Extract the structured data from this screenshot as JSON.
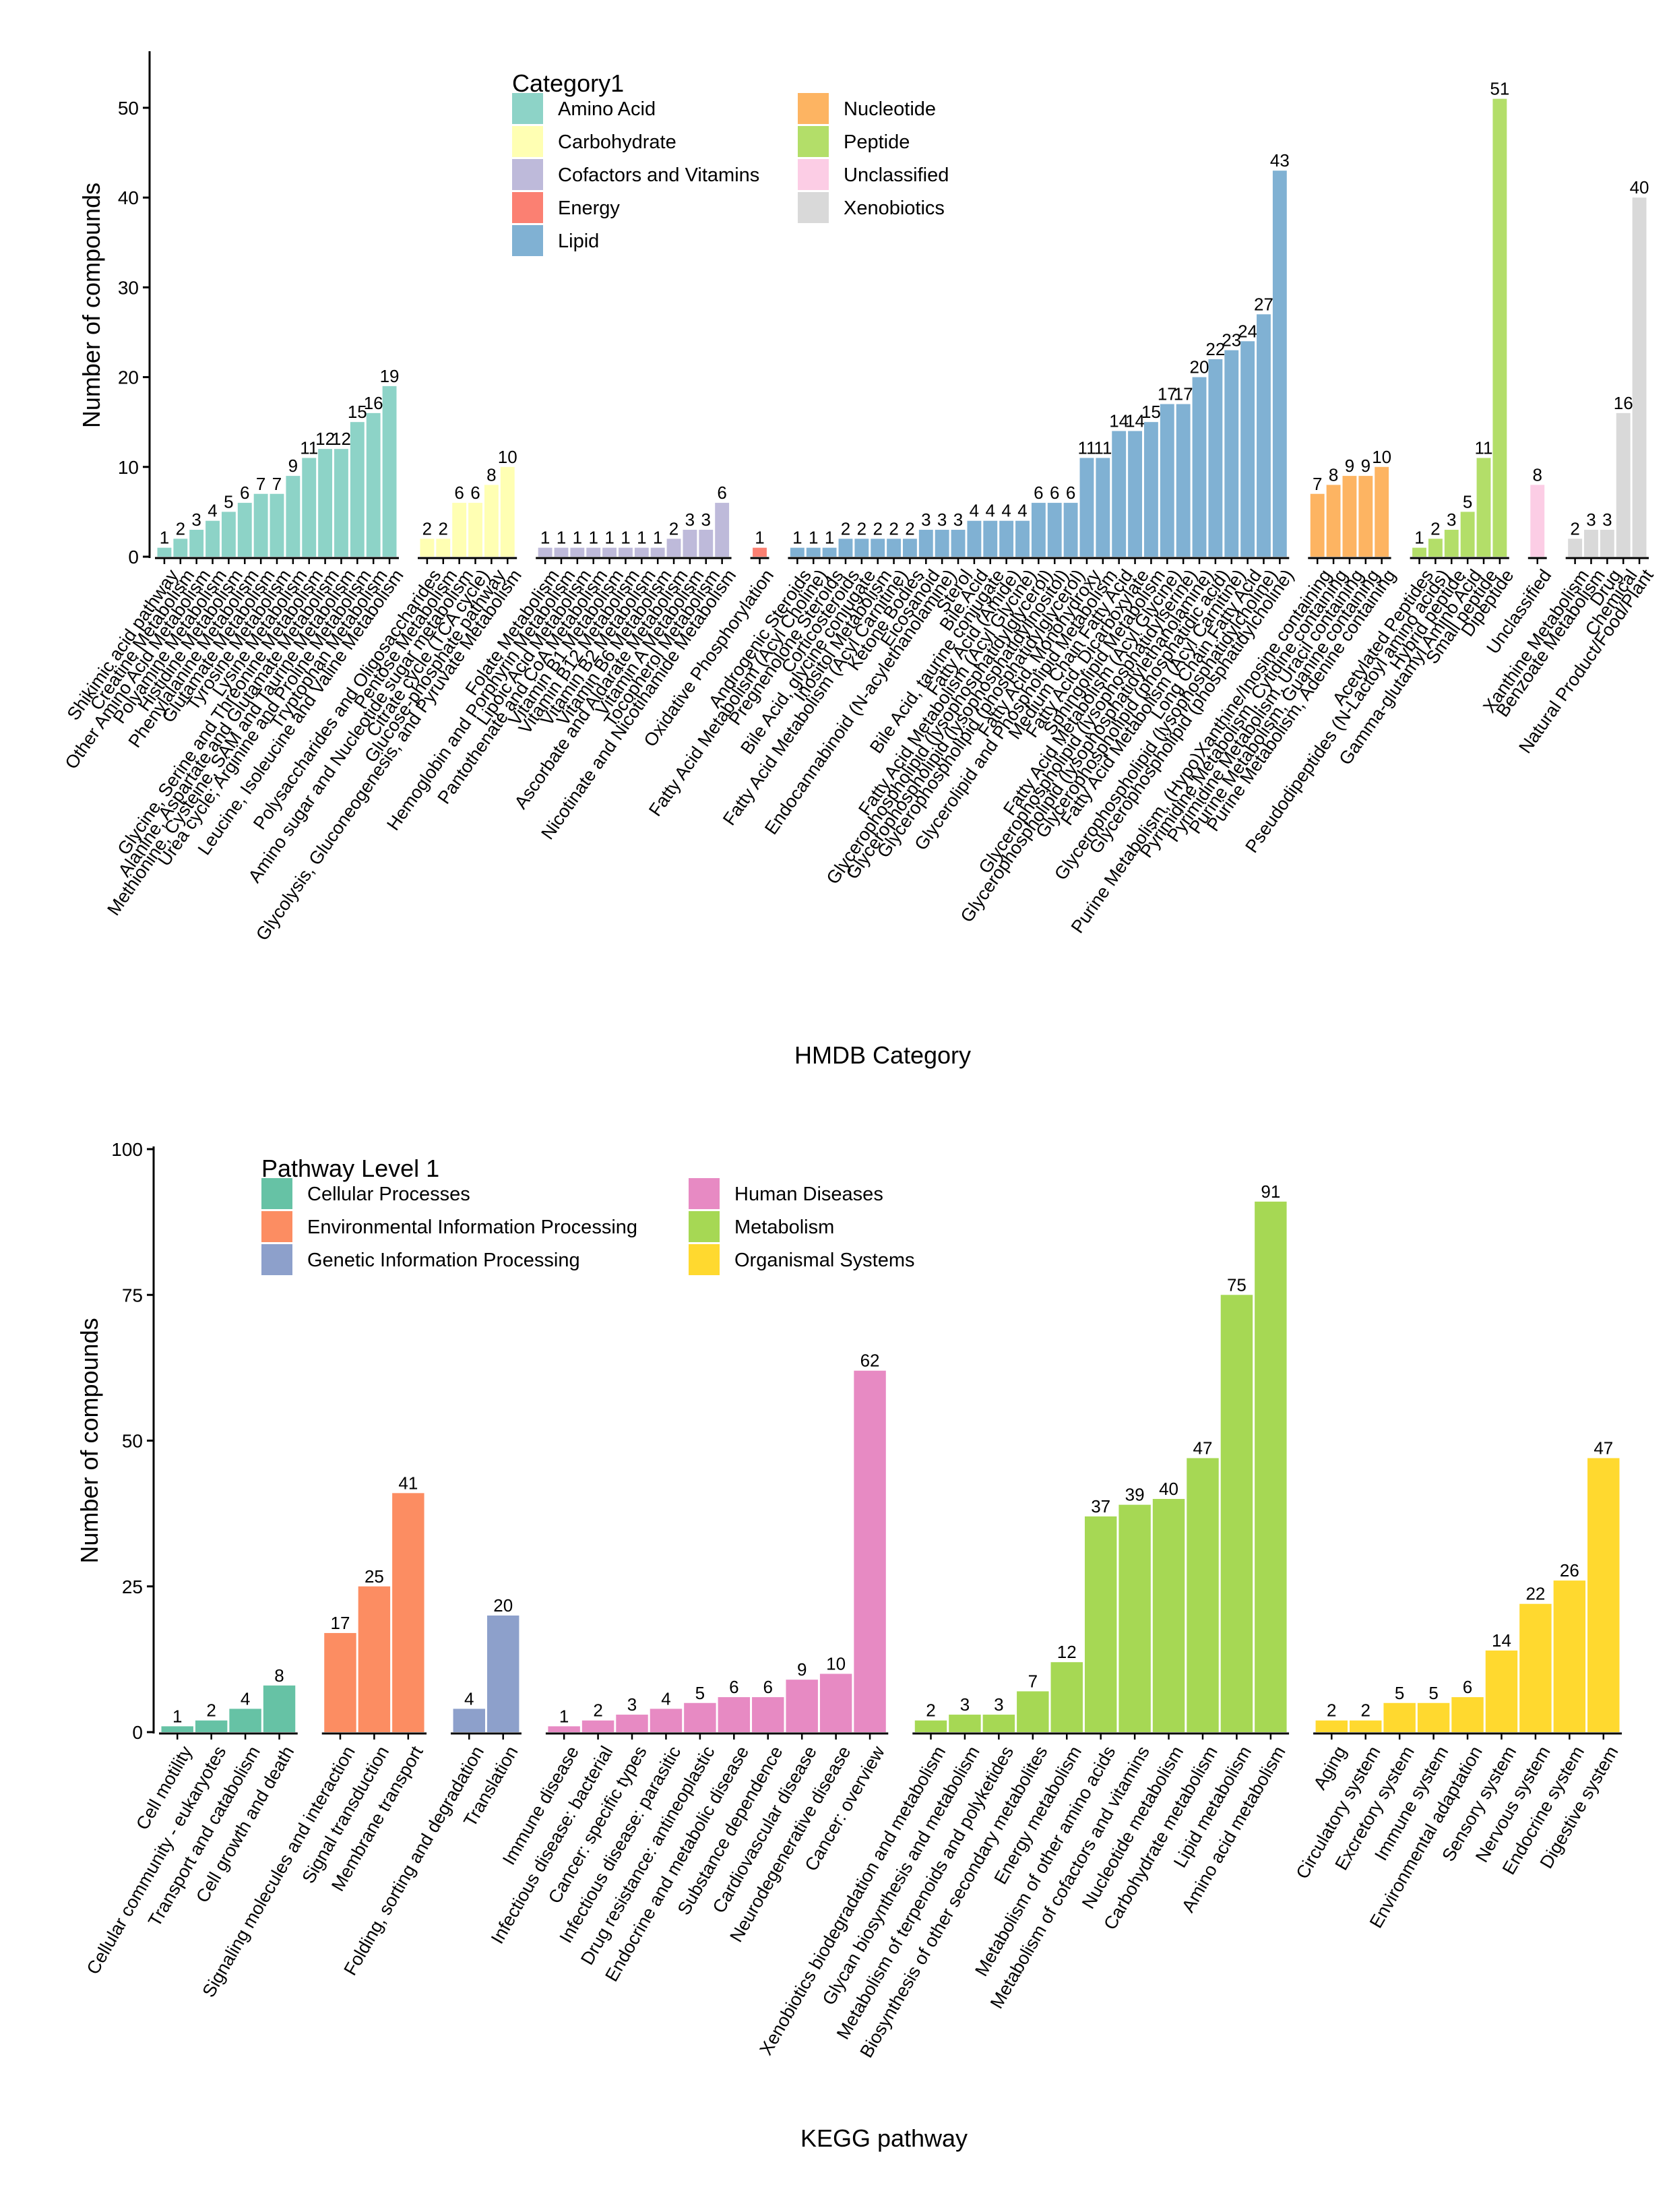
{
  "chart_data": [
    {
      "type": "bar",
      "xlabel": "HMDB Category",
      "ylabel": "Number of compounds",
      "ylim": [
        0,
        56
      ],
      "yticks": [
        0,
        10,
        20,
        30,
        40,
        50
      ],
      "grid": false,
      "legend": {
        "title": "Category1",
        "placement": "top-left",
        "entries": [
          {
            "name": "Amino Acid",
            "color": "#8dd3c7"
          },
          {
            "name": "Carbohydrate",
            "color": "#ffffb3"
          },
          {
            "name": "Cofactors and Vitamins",
            "color": "#bebada"
          },
          {
            "name": "Energy",
            "color": "#fb8072"
          },
          {
            "name": "Lipid",
            "color": "#80b1d3"
          },
          {
            "name": "Nucleotide",
            "color": "#fdb462"
          },
          {
            "name": "Peptide",
            "color": "#b3de69"
          },
          {
            "name": "Unclassified",
            "color": "#fccde5"
          },
          {
            "name": "Xenobiotics",
            "color": "#d9d9d9"
          }
        ]
      },
      "groups": [
        {
          "name": "Amino Acid",
          "color": "#8dd3c7",
          "bars": [
            {
              "label": "Shikimic acid pathway",
              "value": 1
            },
            {
              "label": "Creatine Metabolism",
              "value": 2
            },
            {
              "label": "Other Amino Acid Metabolism",
              "value": 3
            },
            {
              "label": "Polyamine Metabolism",
              "value": 4
            },
            {
              "label": "Histidine Metabolism",
              "value": 5
            },
            {
              "label": "Phenylalanine Metabolism",
              "value": 6
            },
            {
              "label": "Glutamate Metabolism",
              "value": 7
            },
            {
              "label": "Tyrosine Metabolism",
              "value": 7
            },
            {
              "label": "Lysine Metabolism",
              "value": 9
            },
            {
              "label": "Glycine, Serine and Threonine Metabolism",
              "value": 11
            },
            {
              "label": "Alanine, Aspartate and Glutamate Metabolism",
              "value": 12
            },
            {
              "label": "Methionine, Cysteine, SAM and Taurine Metabolism",
              "value": 12
            },
            {
              "label": "Urea cycle; Arginine and Proline Metabolism",
              "value": 15
            },
            {
              "label": "Tryptophan Metabolism",
              "value": 16
            },
            {
              "label": "Leucine, Isoleucine and Valine Metabolism",
              "value": 19
            }
          ]
        },
        {
          "name": "Carbohydrate",
          "color": "#ffffb3",
          "bars": [
            {
              "label": "Polysaccharides and Oligosaccharides",
              "value": 2
            },
            {
              "label": "Pentose Metabolism",
              "value": 2
            },
            {
              "label": "Amino sugar and Nucleotide sugar metabolism",
              "value": 6
            },
            {
              "label": "Citrate cycle (TCA cycle)",
              "value": 6
            },
            {
              "label": "Glucose-phosphate pathway",
              "value": 8
            },
            {
              "label": "Glycolysis, Gluconeogenesis, and Pyruvate Metabolism",
              "value": 10
            }
          ]
        },
        {
          "name": "Cofactors and Vitamins",
          "color": "#bebada",
          "bars": [
            {
              "label": "Folate Metabolism",
              "value": 1
            },
            {
              "label": "Hemoglobin and Porphyrin Metabolism",
              "value": 1
            },
            {
              "label": "Lipoic Acid Metabolism",
              "value": 1
            },
            {
              "label": "Pantothenate and CoA Metabolism",
              "value": 1
            },
            {
              "label": "Vitamin B1 Metabolism",
              "value": 1
            },
            {
              "label": "Vitamin B12 Metabolism",
              "value": 1
            },
            {
              "label": "Vitamin B2 Metabolism",
              "value": 1
            },
            {
              "label": "Vitamin B6 Metabolism",
              "value": 1
            },
            {
              "label": "Ascorbate and Aldarate Metabolism",
              "value": 2
            },
            {
              "label": "Vitamin A Metabolism",
              "value": 3
            },
            {
              "label": "Tocopherol Metabolism",
              "value": 3
            },
            {
              "label": "Nicotinate and Nicotinamide Metabolism",
              "value": 6
            }
          ]
        },
        {
          "name": "Energy",
          "color": "#fb8072",
          "bars": [
            {
              "label": "Oxidative Phosphorylation",
              "value": 1
            }
          ]
        },
        {
          "name": "Lipid",
          "color": "#80b1d3",
          "bars": [
            {
              "label": "Androgenic Steroids",
              "value": 1
            },
            {
              "label": "Fatty Acid Metabolism (Acyl Choline)",
              "value": 1
            },
            {
              "label": "Pregnenolone Steroids",
              "value": 1
            },
            {
              "label": "Corticosteroids",
              "value": 2
            },
            {
              "label": "Bile Acid, glycine conjugate",
              "value": 2
            },
            {
              "label": "Inositol Metabolism",
              "value": 2
            },
            {
              "label": "Fatty Acid Metabolism (Acyl Carnitine)",
              "value": 2
            },
            {
              "label": "Ketone Bodies",
              "value": 2
            },
            {
              "label": "Eicosanoid",
              "value": 3
            },
            {
              "label": "Endocannabinoid (N-acylethanolamine)",
              "value": 3
            },
            {
              "label": "Sterol",
              "value": 3
            },
            {
              "label": "Bile Acid",
              "value": 4
            },
            {
              "label": "Bile Acid, taurine conjugate",
              "value": 4
            },
            {
              "label": "Fatty Acid (Amide)",
              "value": 4
            },
            {
              "label": "Fatty Acid Metabolism (Acyl Glycine)",
              "value": 4
            },
            {
              "label": "Glycerophospholipid (lysophosphatidylglycerol)",
              "value": 6
            },
            {
              "label": "Glycerophospholipid (lysophosphatidylinositol)",
              "value": 6
            },
            {
              "label": "Glycerophospholipid (phosphatidylglycerol)",
              "value": 6
            },
            {
              "label": "Fatty Acid, Monohydroxy",
              "value": 11
            },
            {
              "label": "Glycerolipid and Phospholipid Metabolism",
              "value": 11
            },
            {
              "label": "Medium Chain Fatty Acid",
              "value": 14
            },
            {
              "label": "Fatty Acid, Dicarboxylate",
              "value": 14
            },
            {
              "label": "Sphingolipid Metabolism",
              "value": 15
            },
            {
              "label": "Fatty Acid Metabolism (Acyl Glycine)",
              "value": 17
            },
            {
              "label": "Glycerophospholipid (lysophosphatidylserine)",
              "value": 17
            },
            {
              "label": "Glycerophospholipid (lysophosphatidylethanolamine)",
              "value": 20
            },
            {
              "label": "Glycerophospholipid (phosphatidic acid)",
              "value": 22
            },
            {
              "label": "Fatty Acid Metabolism (Acyl Carnitine)",
              "value": 23
            },
            {
              "label": "Long Chain Fatty Acid",
              "value": 24
            },
            {
              "label": "Glycerophospholipid (lysophosphatidylcholine)",
              "value": 27
            },
            {
              "label": "Glycerophospholipid (phosphatidylcholine)",
              "value": 43
            }
          ]
        },
        {
          "name": "Nucleotide",
          "color": "#fdb462",
          "bars": [
            {
              "label": "Purine Metabolism, (Hypo)Xanthine/Inosine containing",
              "value": 7
            },
            {
              "label": "Pyrimidine Metabolism, Cytidine containing",
              "value": 8
            },
            {
              "label": "Pyrimidine Metabolism, Uracil containing",
              "value": 9
            },
            {
              "label": "Purine Metabolism, Guanine containing",
              "value": 9
            },
            {
              "label": "Purine Metabolism, Adenine containing",
              "value": 10
            }
          ]
        },
        {
          "name": "Peptide",
          "color": "#b3de69",
          "bars": [
            {
              "label": "Acetylated Peptides",
              "value": 1
            },
            {
              "label": "Pseudodipeptides (N-Lactoyl amino acids)",
              "value": 2
            },
            {
              "label": "Hybrid peptide",
              "value": 3
            },
            {
              "label": "Gamma-glutamyl Amino Acid",
              "value": 5
            },
            {
              "label": "Small peptide",
              "value": 11
            },
            {
              "label": "Dipeptide",
              "value": 51
            }
          ]
        },
        {
          "name": "Unclassified",
          "color": "#fccde5",
          "bars": [
            {
              "label": "Unclassified",
              "value": 8
            }
          ]
        },
        {
          "name": "Xenobiotics",
          "color": "#d9d9d9",
          "bars": [
            {
              "label": "Xanthine Metabolism",
              "value": 2
            },
            {
              "label": "Benzoate Metabolism",
              "value": 3
            },
            {
              "label": "Drug",
              "value": 3
            },
            {
              "label": "Chemical",
              "value": 16
            },
            {
              "label": "Natural Product/Food/Plant",
              "value": 40
            }
          ]
        }
      ]
    },
    {
      "type": "bar",
      "xlabel": "KEGG pathway",
      "ylabel": "Number of compounds",
      "ylim": [
        0,
        100
      ],
      "yticks": [
        0,
        25,
        50,
        75,
        100
      ],
      "grid": false,
      "legend": {
        "title": "Pathway Level 1",
        "placement": "top-left",
        "entries": [
          {
            "name": "Cellular Processes",
            "color": "#66c2a5"
          },
          {
            "name": "Environmental Information Processing",
            "color": "#fc8d62"
          },
          {
            "name": "Genetic Information Processing",
            "color": "#8da0cb"
          },
          {
            "name": "Human Diseases",
            "color": "#e78ac3"
          },
          {
            "name": "Metabolism",
            "color": "#a6d854"
          },
          {
            "name": "Organismal Systems",
            "color": "#ffd92f"
          }
        ]
      },
      "groups": [
        {
          "name": "Cellular Processes",
          "color": "#66c2a5",
          "bars": [
            {
              "label": "Cell motility",
              "value": 1
            },
            {
              "label": "Cellular community - eukaryotes",
              "value": 2
            },
            {
              "label": "Transport and catabolism",
              "value": 4
            },
            {
              "label": "Cell growth and death",
              "value": 8
            }
          ]
        },
        {
          "name": "Environmental Information Processing",
          "color": "#fc8d62",
          "bars": [
            {
              "label": "Signaling molecules and interaction",
              "value": 17
            },
            {
              "label": "Signal transduction",
              "value": 25
            },
            {
              "label": "Membrane transport",
              "value": 41
            }
          ]
        },
        {
          "name": "Genetic Information Processing",
          "color": "#8da0cb",
          "bars": [
            {
              "label": "Folding, sorting and degradation",
              "value": 4
            },
            {
              "label": "Translation",
              "value": 20
            }
          ]
        },
        {
          "name": "Human Diseases",
          "color": "#e78ac3",
          "bars": [
            {
              "label": "Immune disease",
              "value": 1
            },
            {
              "label": "Infectious disease: bacterial",
              "value": 2
            },
            {
              "label": "Cancer: specific types",
              "value": 3
            },
            {
              "label": "Infectious disease: parasitic",
              "value": 4
            },
            {
              "label": "Drug resistance: antineoplastic",
              "value": 5
            },
            {
              "label": "Endocrine and metabolic disease",
              "value": 6
            },
            {
              "label": "Substance dependence",
              "value": 6
            },
            {
              "label": "Cardiovascular disease",
              "value": 9
            },
            {
              "label": "Neurodegenerative disease",
              "value": 10
            },
            {
              "label": "Cancer: overview",
              "value": 62
            }
          ]
        },
        {
          "name": "Metabolism",
          "color": "#a6d854",
          "bars": [
            {
              "label": "Xenobiotics biodegradation and metabolism",
              "value": 2
            },
            {
              "label": "Glycan biosynthesis and metabolism",
              "value": 3
            },
            {
              "label": "Metabolism of terpenoids and polyketides",
              "value": 3
            },
            {
              "label": "Biosynthesis of other secondary metabolites",
              "value": 7
            },
            {
              "label": "Energy metabolism",
              "value": 12
            },
            {
              "label": "Metabolism of other amino acids",
              "value": 37
            },
            {
              "label": "Metabolism of cofactors and vitamins",
              "value": 39
            },
            {
              "label": "Nucleotide metabolism",
              "value": 40
            },
            {
              "label": "Carbohydrate metabolism",
              "value": 47
            },
            {
              "label": "Lipid metabolism",
              "value": 75
            },
            {
              "label": "Amino acid metabolism",
              "value": 91
            }
          ]
        },
        {
          "name": "Organismal Systems",
          "color": "#ffd92f",
          "bars": [
            {
              "label": "Aging",
              "value": 2
            },
            {
              "label": "Circulatory system",
              "value": 2
            },
            {
              "label": "Excretory system",
              "value": 5
            },
            {
              "label": "Immune system",
              "value": 5
            },
            {
              "label": "Environmental adaptation",
              "value": 6
            },
            {
              "label": "Sensory system",
              "value": 14
            },
            {
              "label": "Nervous system",
              "value": 22
            },
            {
              "label": "Endocrine system",
              "value": 26
            },
            {
              "label": "Digestive system",
              "value": 47
            }
          ]
        }
      ]
    }
  ]
}
